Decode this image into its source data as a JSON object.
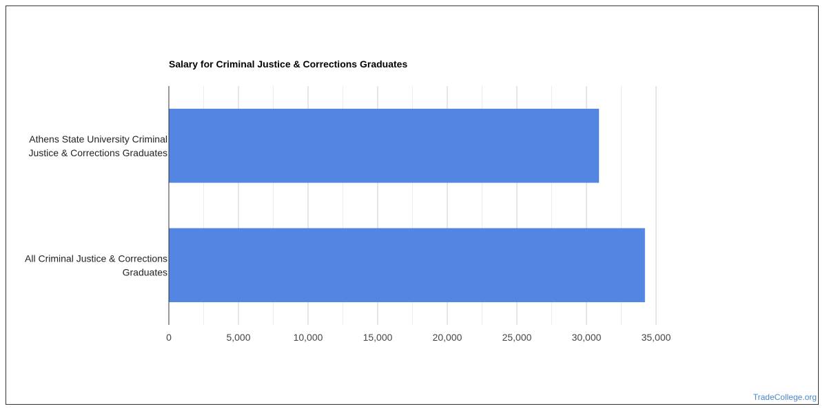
{
  "chart_data": {
    "type": "bar",
    "orientation": "horizontal",
    "title": "Salary for Criminal Justice & Corrections Graduates",
    "categories": [
      [
        "Athens State University Criminal",
        "Justice & Corrections Graduates"
      ],
      [
        "All Criminal Justice & Corrections",
        "Graduates"
      ]
    ],
    "values": [
      30900,
      34200
    ],
    "xlim": [
      0,
      35000
    ],
    "x_ticks": [
      0,
      5000,
      10000,
      15000,
      20000,
      25000,
      30000,
      35000
    ],
    "x_tick_labels": [
      "0",
      "5,000",
      "10,000",
      "15,000",
      "20,000",
      "25,000",
      "30,000",
      "35,000"
    ],
    "grid": true,
    "bar_color": "#5286e2",
    "xlabel": "",
    "ylabel": ""
  },
  "footer": {
    "credit": "TradeCollege.org"
  }
}
